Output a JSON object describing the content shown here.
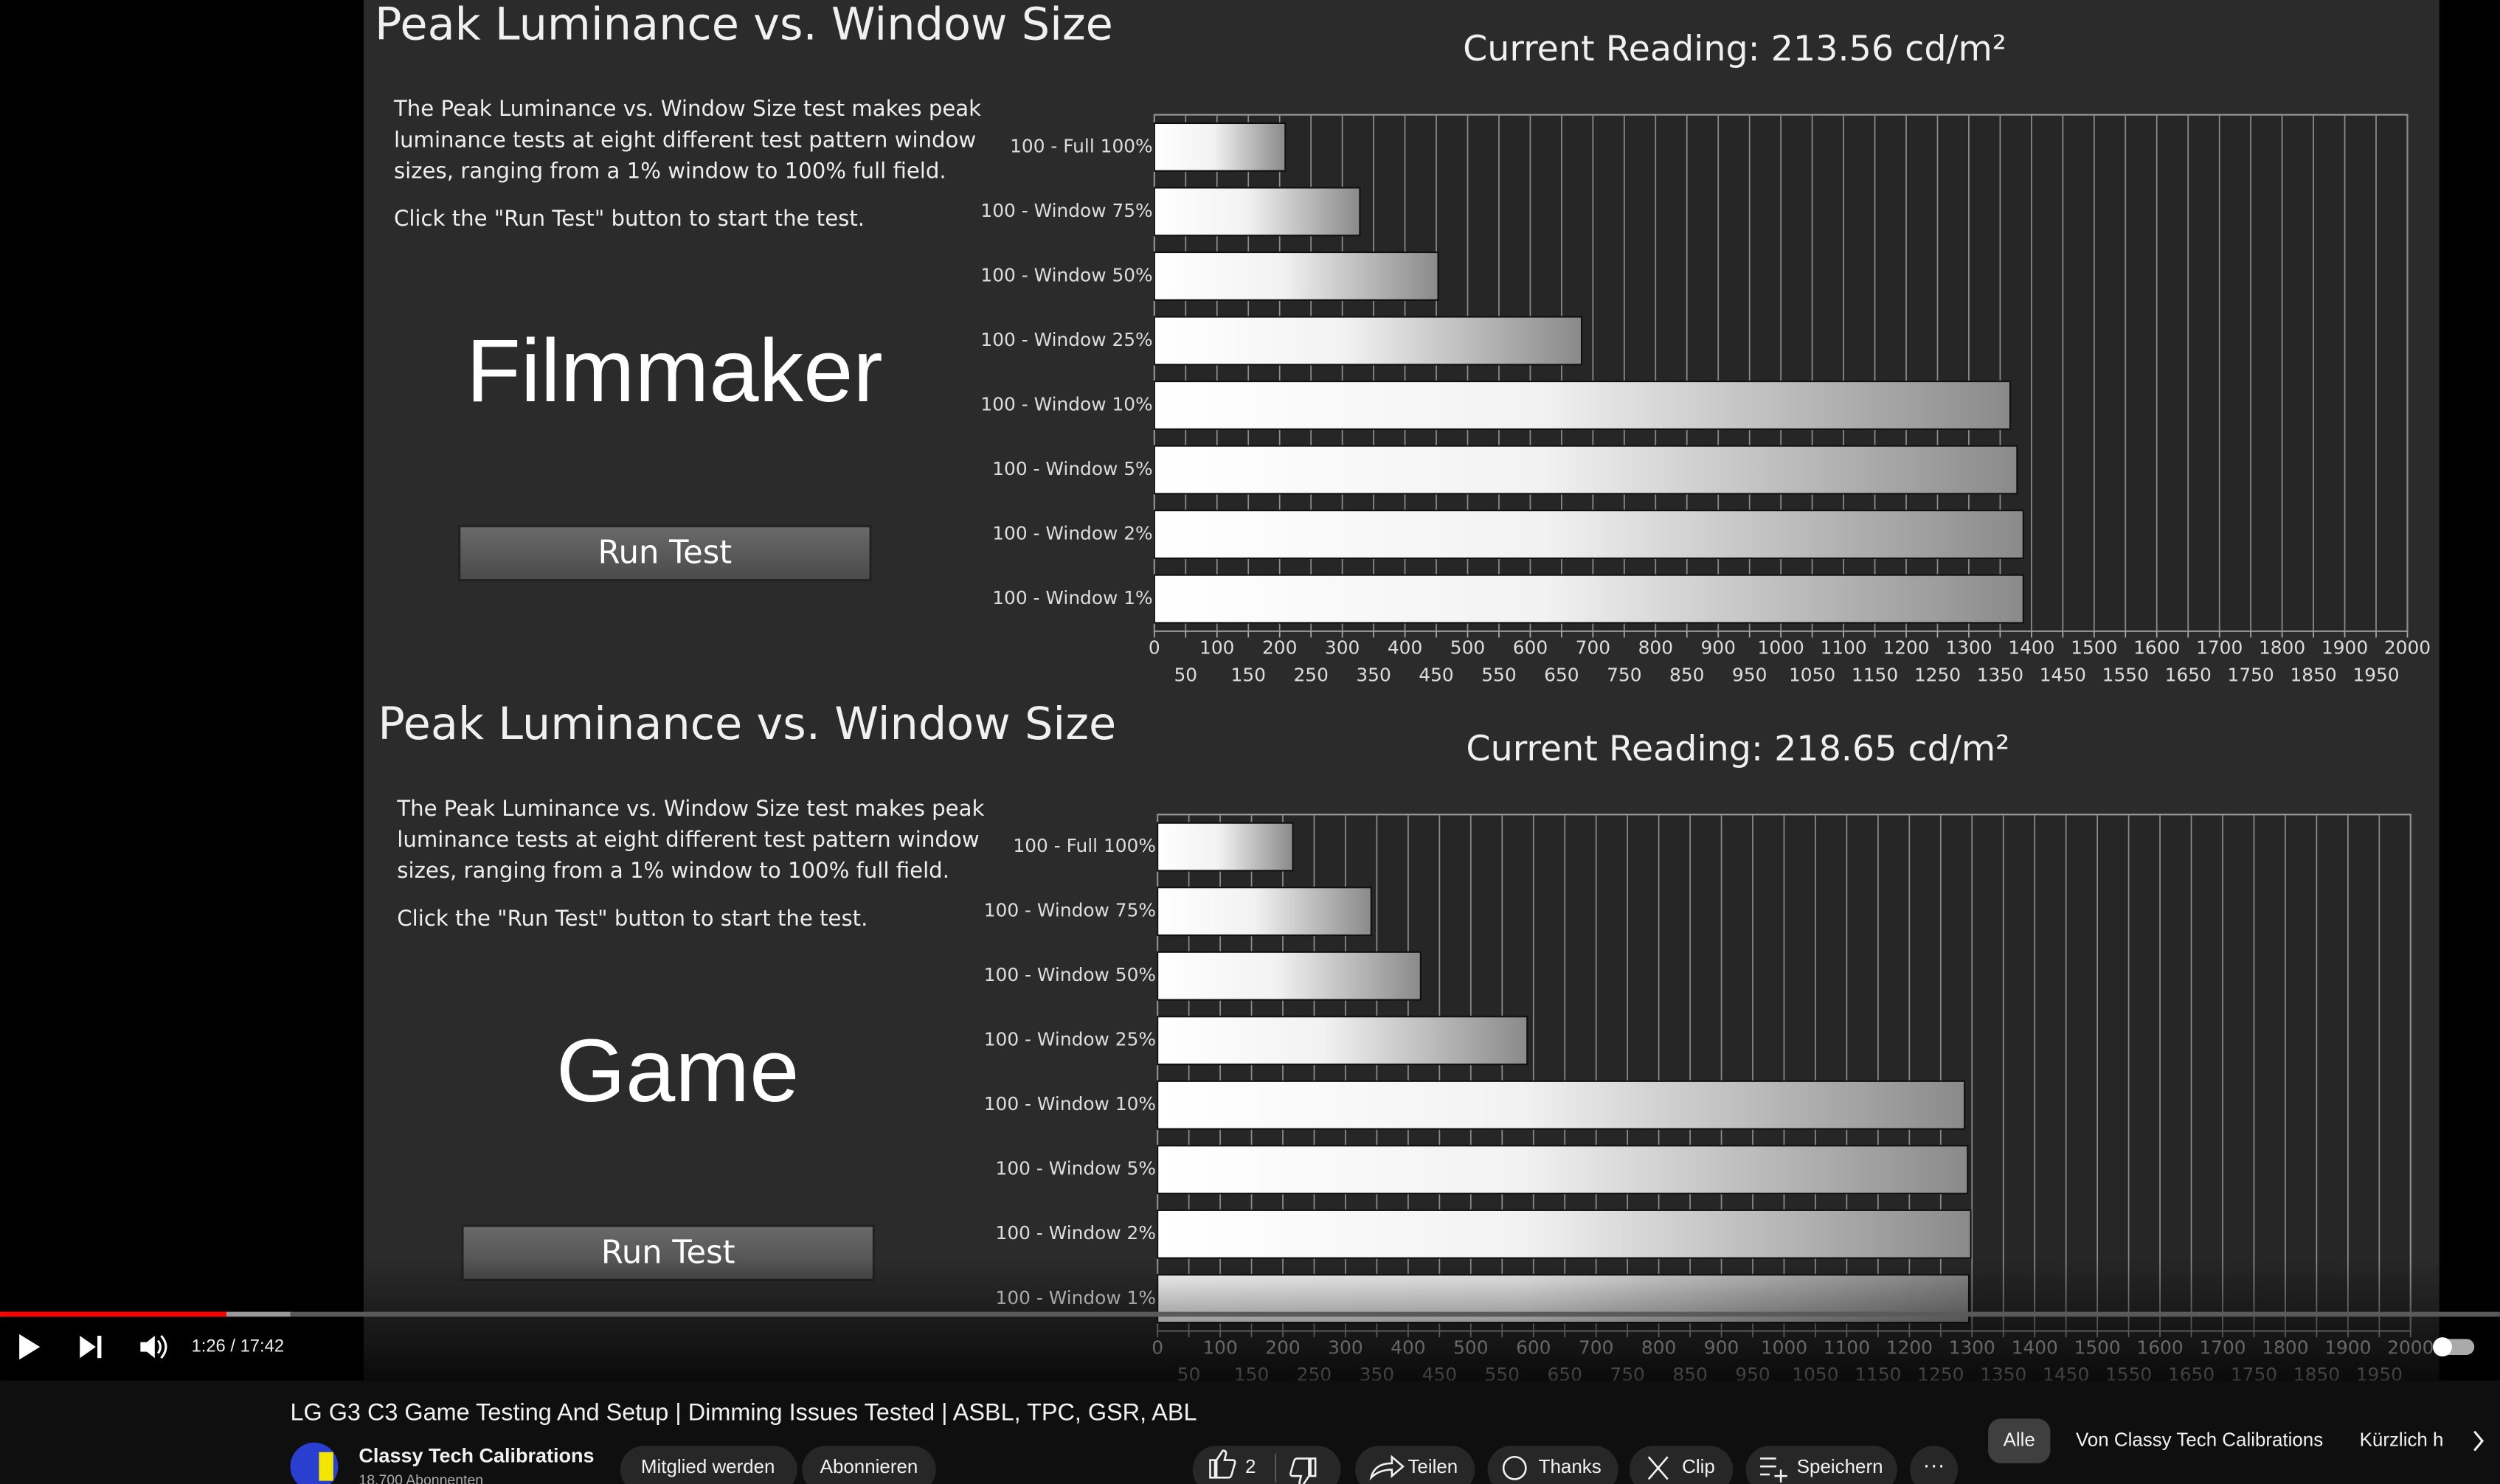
{
  "video": {
    "panels": [
      {
        "title": "Peak Luminance vs. Window Size",
        "current_reading": "Current Reading: 213.56 cd/m²",
        "description": [
          "The Peak Luminance vs. Window Size test makes peak",
          "luminance tests at eight different test pattern window",
          "sizes, ranging from a 1% window to 100% full field."
        ],
        "instruction": "Click the \"Run Test\" button to start the test.",
        "mode": "Filmmaker",
        "button": "Run Test",
        "chart": {
          "type": "bar",
          "orientation": "horizontal",
          "categories": [
            "100 - Full 100%",
            "100 - Window 75%",
            "100 - Window 50%",
            "100 - Window 25%",
            "100 - Window 10%",
            "100 - Window 5%",
            "100 - Window 2%",
            "100 - Window 1%"
          ],
          "values": [
            209,
            328,
            453,
            682,
            1366,
            1377,
            1387,
            1387
          ],
          "xlim": [
            0,
            2000
          ],
          "xticks": [
            0,
            50,
            100,
            150,
            200,
            250,
            300,
            350,
            400,
            450,
            500,
            550,
            600,
            650,
            700,
            750,
            800,
            850,
            900,
            950,
            1000,
            1050,
            1100,
            1150,
            1200,
            1250,
            1300,
            1350,
            1400,
            1450,
            1500,
            1550,
            1600,
            1650,
            1700,
            1750,
            1800,
            1850,
            1900,
            1950,
            2000
          ],
          "grid": true
        }
      },
      {
        "title": "Peak Luminance vs. Window Size",
        "current_reading": "Current Reading: 218.65 cd/m²",
        "description": [
          "The Peak Luminance vs. Window Size test makes peak",
          "luminance tests at eight different test pattern window",
          "sizes, ranging from a 1% window to 100% full field."
        ],
        "instruction": "Click the \"Run Test\" button to start the test.",
        "mode": "Game",
        "button": "Run Test",
        "chart": {
          "type": "bar",
          "orientation": "horizontal",
          "categories": [
            "100 - Full 100%",
            "100 - Window 75%",
            "100 - Window 50%",
            "100 - Window 25%",
            "100 - Window 10%",
            "100 - Window 5%",
            "100 - Window 2%",
            "100 - Window 1%"
          ],
          "values": [
            216,
            341,
            420,
            590,
            1288,
            1293,
            1298,
            1295
          ],
          "xlim": [
            0,
            2000
          ],
          "xticks": [
            0,
            50,
            100,
            150,
            200,
            250,
            300,
            350,
            400,
            450,
            500,
            550,
            600,
            650,
            700,
            750,
            800,
            850,
            900,
            950,
            1000,
            1050,
            1100,
            1150,
            1200,
            1250,
            1300,
            1350,
            1400,
            1450,
            1500,
            1550,
            1600,
            1650,
            1700,
            1750,
            1800,
            1850,
            1900,
            1950,
            2000
          ],
          "grid": true
        }
      }
    ],
    "time": "1:26 / 17:42",
    "title": "LG G3 C3 Game Testing And Setup | Dimming Issues Tested | ASBL, TPC, GSR, ABL",
    "channel": "Classy Tech Calibrations",
    "subscribers": "18.700 Abonnenten",
    "buttons": {
      "join": "Mitglied werden",
      "subscribe": "Abonnieren",
      "likes": "2",
      "share": "Teilen",
      "thanks": "Thanks",
      "clip": "Clip",
      "save": "Speichern"
    },
    "chips": [
      "Alle",
      "Von Classy Tech Calibrations",
      "Kürzlich h"
    ]
  }
}
